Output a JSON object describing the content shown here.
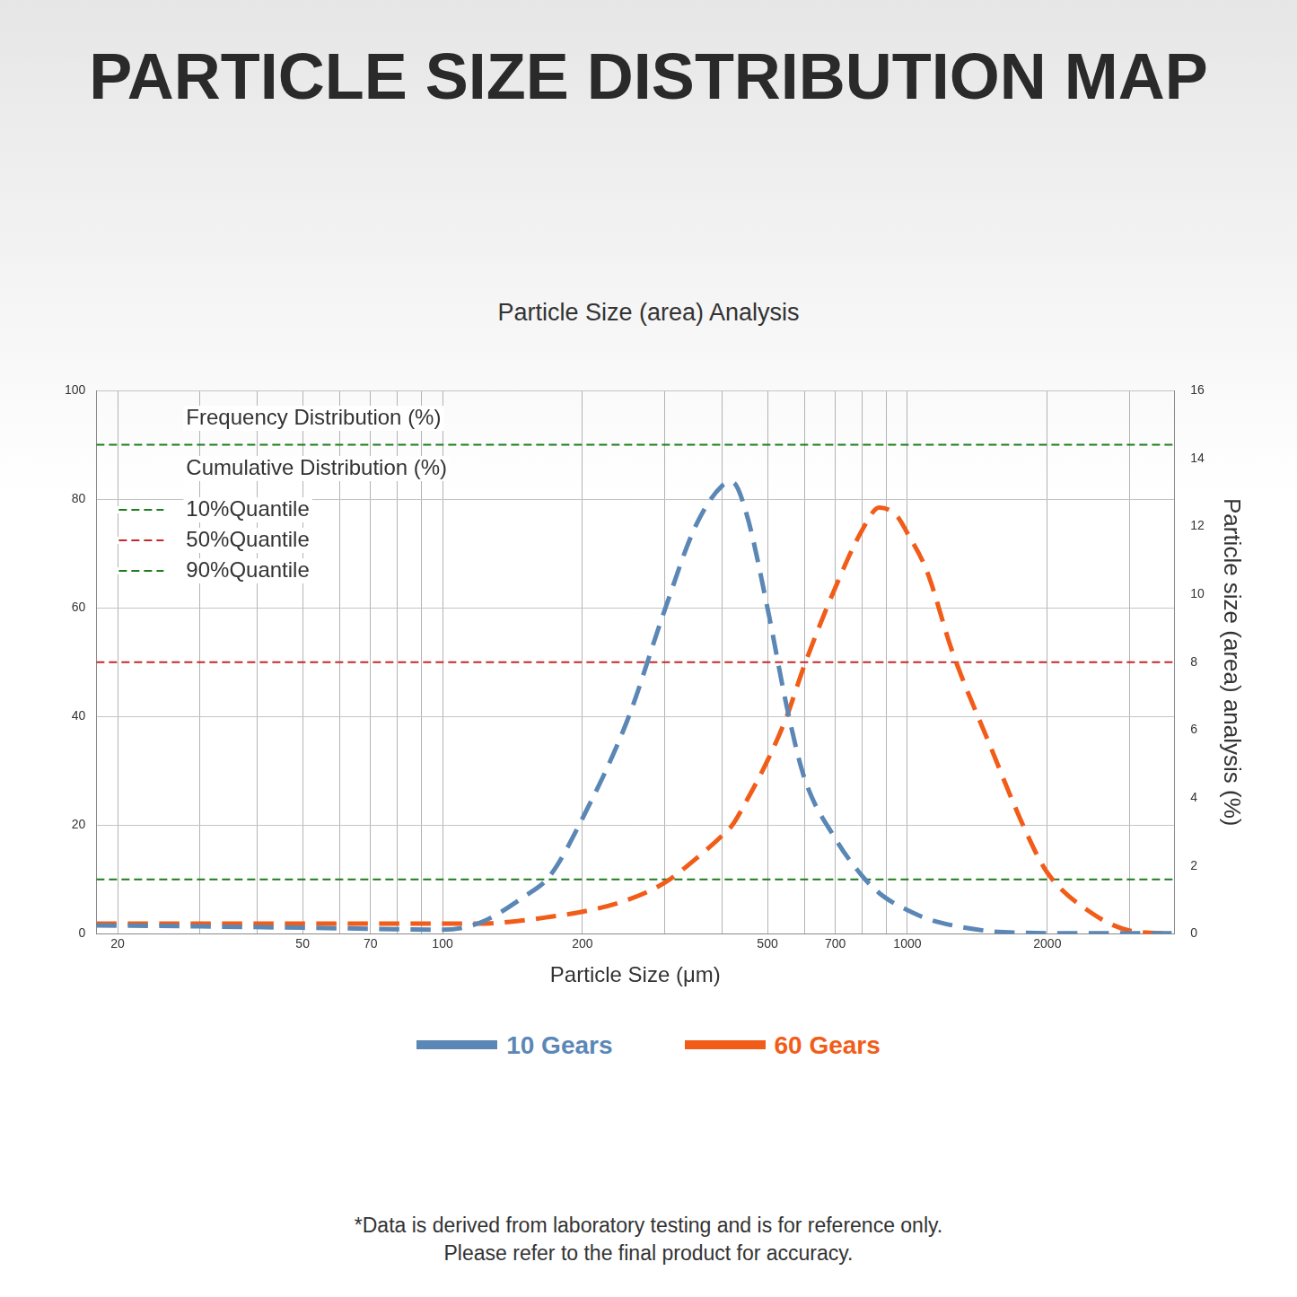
{
  "chart_data": {
    "type": "line",
    "title": "PARTICLE SIZE DISTRIBUTION MAP",
    "subtitle": "Particle Size (area) Analysis",
    "x_label": "Particle Size (μm)",
    "y2_label": "Particle size (area) analysis (%)",
    "annotations": [
      "Frequency Distribution (%)",
      "Cumulative Distribution (%)"
    ],
    "footnote": [
      "*Data is derived from laboratory testing and is for reference only.",
      "Please refer to the final product for accuracy."
    ],
    "log": "x",
    "grid": true,
    "legend": "bottom",
    "xlim": [
      18,
      3750
    ],
    "xticks": [
      20,
      50,
      70,
      100,
      200,
      500,
      700,
      1000,
      2000
    ],
    "ylim": [
      0,
      100
    ],
    "yticks": [
      0,
      20,
      40,
      60,
      80,
      100
    ],
    "y2lim": [
      0,
      16
    ],
    "y2ticks": [
      0,
      2,
      4,
      6,
      8,
      10,
      12,
      14,
      16
    ],
    "x": [
      18,
      30,
      50,
      70,
      100,
      120,
      150,
      170,
      200,
      250,
      300,
      350,
      400,
      420,
      450,
      500,
      550,
      600,
      700,
      800,
      870,
      950,
      1000,
      1100,
      1250,
      1500,
      1800,
      2000,
      2500,
      3000,
      3750
    ],
    "series": [
      {
        "name": "10 Gears",
        "color": "#5b87b6",
        "axis": "y2",
        "line_style": "dashed",
        "values": [
          0.25,
          0.22,
          0.18,
          0.15,
          0.12,
          0.32,
          1.1,
          1.7,
          3.4,
          6.3,
          9.5,
          12.0,
          13.2,
          13.3,
          12.4,
          9.6,
          6.7,
          4.6,
          2.8,
          1.7,
          1.2,
          0.85,
          0.7,
          0.45,
          0.25,
          0.08,
          0.03,
          0.02,
          0.02,
          0.02,
          0.02
        ]
      },
      {
        "name": "60 Gears",
        "color": "#f25c19",
        "axis": "y2",
        "line_style": "dashed",
        "values": [
          0.3,
          0.3,
          0.3,
          0.3,
          0.3,
          0.3,
          0.4,
          0.5,
          0.65,
          1.0,
          1.5,
          2.2,
          2.9,
          3.2,
          3.9,
          5.1,
          6.4,
          7.9,
          10.2,
          11.9,
          12.55,
          12.3,
          11.8,
          10.7,
          8.3,
          5.6,
          3.0,
          1.8,
          0.6,
          0.1,
          0.0
        ]
      },
      {
        "name": "10%Quantile",
        "color": "#1e7b1e",
        "axis": "y",
        "line_style": "dashed",
        "values": [
          10,
          10,
          10,
          10,
          10,
          10,
          10,
          10,
          10,
          10,
          10,
          10,
          10,
          10,
          10,
          10,
          10,
          10,
          10,
          10,
          10,
          10,
          10,
          10,
          10,
          10,
          10,
          10,
          10,
          10,
          10
        ]
      },
      {
        "name": "50%Quantile",
        "color": "#c62828",
        "axis": "y",
        "line_style": "dashed",
        "values": [
          50,
          50,
          50,
          50,
          50,
          50,
          50,
          50,
          50,
          50,
          50,
          50,
          50,
          50,
          50,
          50,
          50,
          50,
          50,
          50,
          50,
          50,
          50,
          50,
          50,
          50,
          50,
          50,
          50,
          50,
          50
        ]
      },
      {
        "name": "90%Quantile",
        "color": "#1e7b1e",
        "axis": "y",
        "line_style": "dashed",
        "values": [
          90,
          90,
          90,
          90,
          90,
          90,
          90,
          90,
          90,
          90,
          90,
          90,
          90,
          90,
          90,
          90,
          90,
          90,
          90,
          90,
          90,
          90,
          90,
          90,
          90,
          90,
          90,
          90,
          90,
          90,
          90
        ]
      }
    ]
  }
}
